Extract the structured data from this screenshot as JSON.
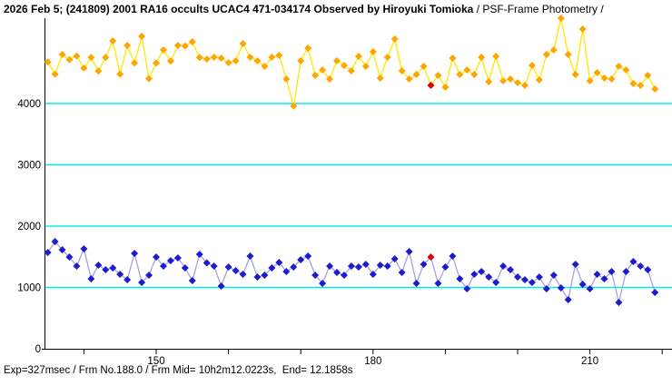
{
  "title": {
    "main": "2026 Feb 5; (241809) 2001 RA16 occults UCAC4 471-034174 Observed by Hiroyuki Tomioka",
    "suffix": " / PSF-Frame Photometry /"
  },
  "footer": {
    "text": "Exp=327msec / Frm No.188.0 / Frm Mid= 10h2m12.0223s,  End= 12.1858s"
  },
  "chart_data": {
    "type": "line",
    "title": "2026 Feb 5; (241809) 2001 RA16 occults UCAC4 471-034174 Observed by Hiroyuki Tomioka / PSF-Frame Photometry /",
    "xlabel": "",
    "ylabel": "",
    "x_axis": {
      "range": [
        134,
        221
      ],
      "tick_step": 10,
      "minor_ticks": [
        140,
        150,
        160,
        170,
        180,
        190,
        200,
        210,
        220
      ],
      "labeled_ticks": [
        150,
        180,
        210
      ]
    },
    "y_axis": {
      "range": [
        0,
        5400
      ],
      "ticks": [
        4000,
        3000,
        2000,
        1000,
        0
      ],
      "gridlines": [
        1000,
        2000,
        3000,
        4000
      ]
    },
    "grid_color": "#00EDED",
    "axis_color": "#000000",
    "frame_start": 135,
    "frame_step": 1,
    "highlight_frame": 188,
    "highlight_color": "#DF0000",
    "series": [
      {
        "name": "upper-light-curve",
        "marker_color": "#FFA500",
        "line_color": "#FFE800",
        "values": [
          4677,
          4479,
          4800,
          4716,
          4775,
          4578,
          4751,
          4529,
          4751,
          5022,
          4479,
          4948,
          4662,
          5096,
          4405,
          4662,
          4874,
          4692,
          4948,
          4938,
          5007,
          4751,
          4725,
          4756,
          4741,
          4667,
          4696,
          4978,
          4756,
          4696,
          4607,
          4756,
          4786,
          4400,
          3960,
          4696,
          4904,
          4459,
          4548,
          4400,
          4696,
          4622,
          4533,
          4770,
          4607,
          4844,
          4415,
          4756,
          5051,
          4533,
          4400,
          4474,
          4607,
          4296,
          4459,
          4267,
          4741,
          4474,
          4548,
          4474,
          4756,
          4356,
          4770,
          4370,
          4400,
          4341,
          4296,
          4622,
          4385,
          4800,
          4874,
          5390,
          4800,
          4474,
          5215,
          4370,
          4504,
          4415,
          4400,
          4607,
          4548,
          4326,
          4296,
          4459,
          4237
        ]
      },
      {
        "name": "lower-light-curve",
        "marker_color": "#1C1CCE",
        "line_color": "#A3A3E0",
        "values": [
          1570,
          1748,
          1615,
          1496,
          1348,
          1630,
          1141,
          1363,
          1289,
          1319,
          1215,
          1126,
          1556,
          1081,
          1200,
          1496,
          1348,
          1437,
          1481,
          1319,
          1111,
          1541,
          1400,
          1348,
          1022,
          1333,
          1274,
          1215,
          1511,
          1170,
          1200,
          1319,
          1407,
          1259,
          1333,
          1452,
          1511,
          1200,
          1067,
          1348,
          1244,
          1200,
          1348,
          1333,
          1378,
          1215,
          1363,
          1348,
          1467,
          1244,
          1585,
          1067,
          1378,
          1496,
          1067,
          1333,
          1511,
          1141,
          978,
          1215,
          1259,
          1170,
          1081,
          1348,
          1289,
          1170,
          1126,
          1081,
          1170,
          978,
          1200,
          993,
          800,
          1378,
          1052,
          978,
          1215,
          1141,
          1259,
          756,
          1259,
          1422,
          1348,
          1289,
          919
        ]
      }
    ]
  }
}
